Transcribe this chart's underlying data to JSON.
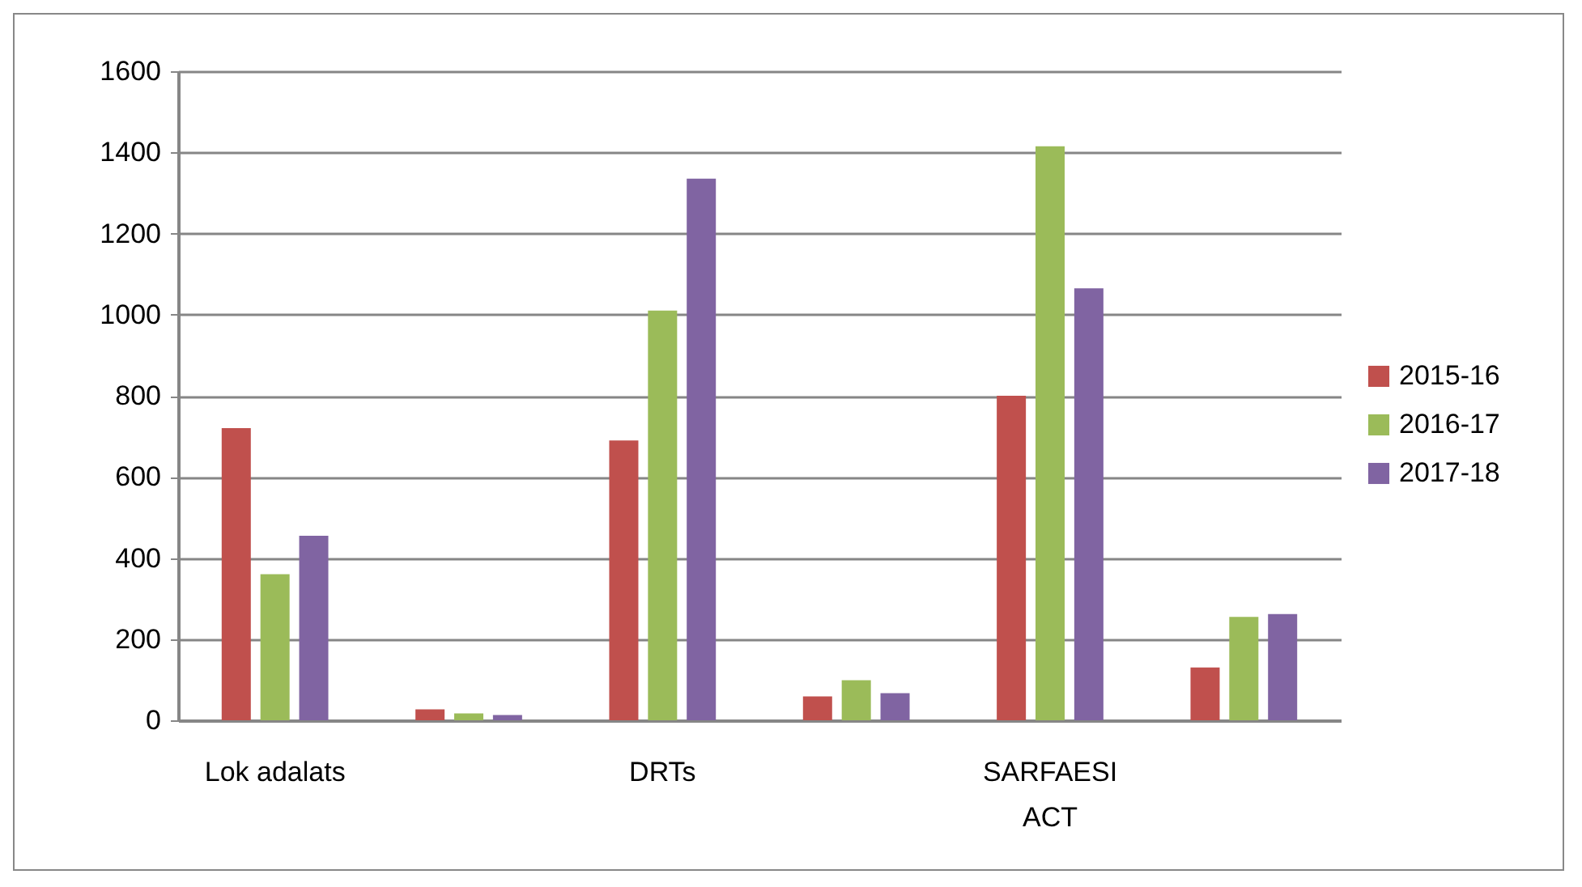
{
  "chart_data": {
    "type": "bar",
    "categories": [
      "Lok adalats",
      null,
      "DRTs",
      null,
      "SARFAESI\nACT",
      null
    ],
    "series": [
      {
        "name": "2015-16",
        "color": "#c0504d",
        "values": [
          720,
          27,
          690,
          59,
          800,
          130
        ]
      },
      {
        "name": "2016-17",
        "color": "#9bbb59",
        "values": [
          360,
          17,
          1010,
          99,
          1415,
          255
        ]
      },
      {
        "name": "2017-18",
        "color": "#8064a2",
        "values": [
          455,
          13,
          1335,
          67,
          1065,
          262
        ]
      }
    ],
    "ylim": [
      0,
      1600
    ],
    "yticks": [
      0,
      200,
      400,
      600,
      800,
      1000,
      1200,
      1400,
      1600
    ],
    "grid": "y",
    "legend": "right"
  }
}
